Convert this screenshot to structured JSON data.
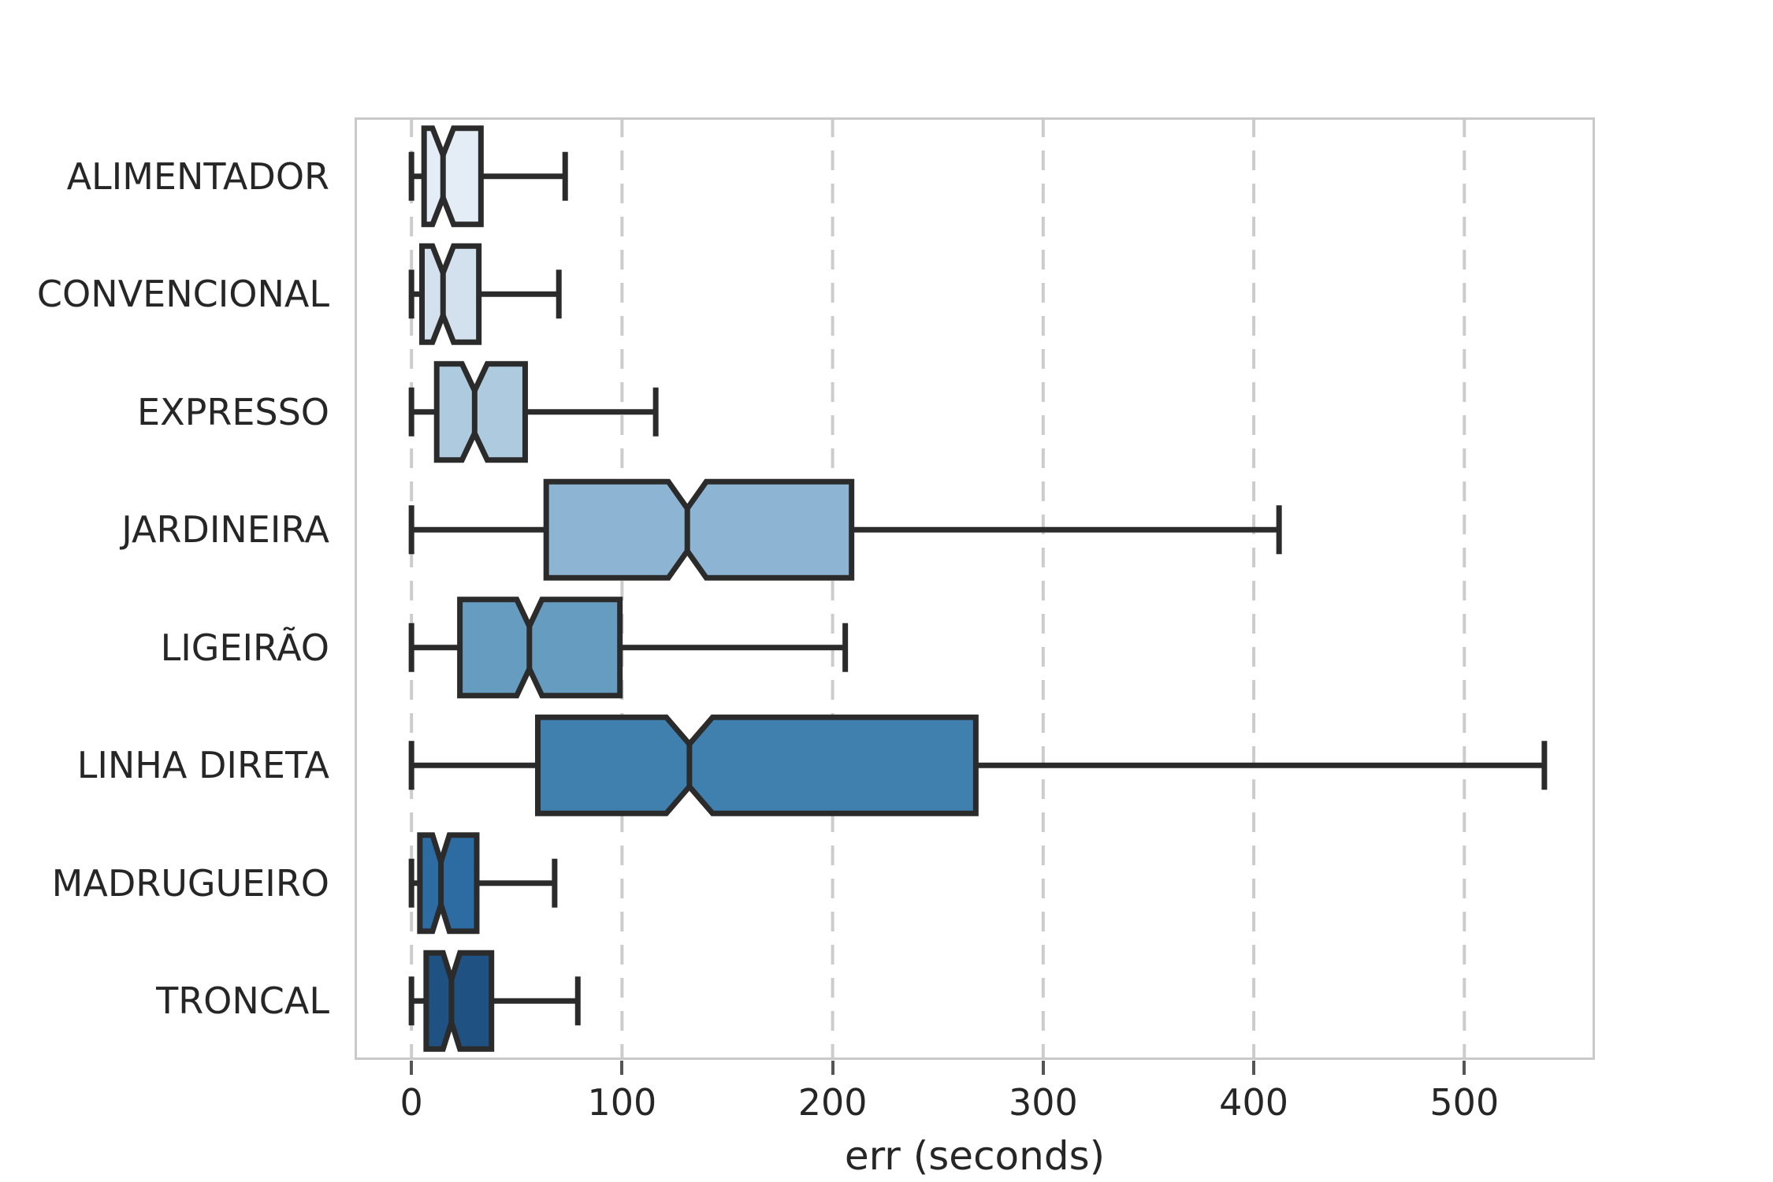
{
  "chart_data": {
    "type": "boxplot",
    "orientation": "horizontal",
    "title": "",
    "xlabel": "err (seconds)",
    "ylabel": "",
    "x_ticks": [
      0,
      100,
      200,
      300,
      400,
      500
    ],
    "xlim": [
      -27,
      562
    ],
    "grid": "vertical-dashed",
    "notched": true,
    "legend": "none",
    "categories": [
      "ALIMENTADOR",
      "CONVENCIONAL",
      "EXPRESSO",
      "JARDINEIRA",
      "LIGEIRÃO",
      "LINHA DIRETA",
      "MADRUGUEIRO",
      "TRONCAL"
    ],
    "series": [
      {
        "name": "ALIMENTADOR",
        "color": "#e4edf6",
        "whisker_low": 0,
        "q1": 6,
        "median": 15,
        "q3": 33,
        "whisker_high": 73,
        "notch_low": 10,
        "notch_high": 20
      },
      {
        "name": "CONVENCIONAL",
        "color": "#d3e1ee",
        "whisker_low": 0,
        "q1": 5,
        "median": 15,
        "q3": 32,
        "whisker_high": 70,
        "notch_low": 10,
        "notch_high": 20
      },
      {
        "name": "EXPRESSO",
        "color": "#aecade",
        "whisker_low": 0,
        "q1": 12,
        "median": 30,
        "q3": 54,
        "whisker_high": 116,
        "notch_low": 24,
        "notch_high": 36
      },
      {
        "name": "JARDINEIRA",
        "color": "#8db5d3",
        "whisker_low": 0,
        "q1": 64,
        "median": 131,
        "q3": 209,
        "whisker_high": 412,
        "notch_low": 122,
        "notch_high": 140
      },
      {
        "name": "LIGEIRÃO",
        "color": "#679cc1",
        "whisker_low": 0,
        "q1": 23,
        "median": 56,
        "q3": 99,
        "whisker_high": 206,
        "notch_low": 50,
        "notch_high": 62
      },
      {
        "name": "LINHA DIRETA",
        "color": "#3f80af",
        "whisker_low": 0,
        "q1": 60,
        "median": 132,
        "q3": 268,
        "whisker_high": 538,
        "notch_low": 121,
        "notch_high": 143
      },
      {
        "name": "MADRUGUEIRO",
        "color": "#2d6ca3",
        "whisker_low": 0,
        "q1": 4,
        "median": 14,
        "q3": 31,
        "whisker_high": 68,
        "notch_low": 10,
        "notch_high": 18
      },
      {
        "name": "TRONCAL",
        "color": "#1f5282",
        "whisker_low": 0,
        "q1": 7,
        "median": 19,
        "q3": 38,
        "whisker_high": 79,
        "notch_low": 15,
        "notch_high": 23
      }
    ],
    "edge_color": "#2b2b2b",
    "grid_color": "#cccccc",
    "border_color": "#c9c9c9",
    "tick_color": "#555555",
    "text_color": "#262626",
    "background": "#ffffff"
  }
}
